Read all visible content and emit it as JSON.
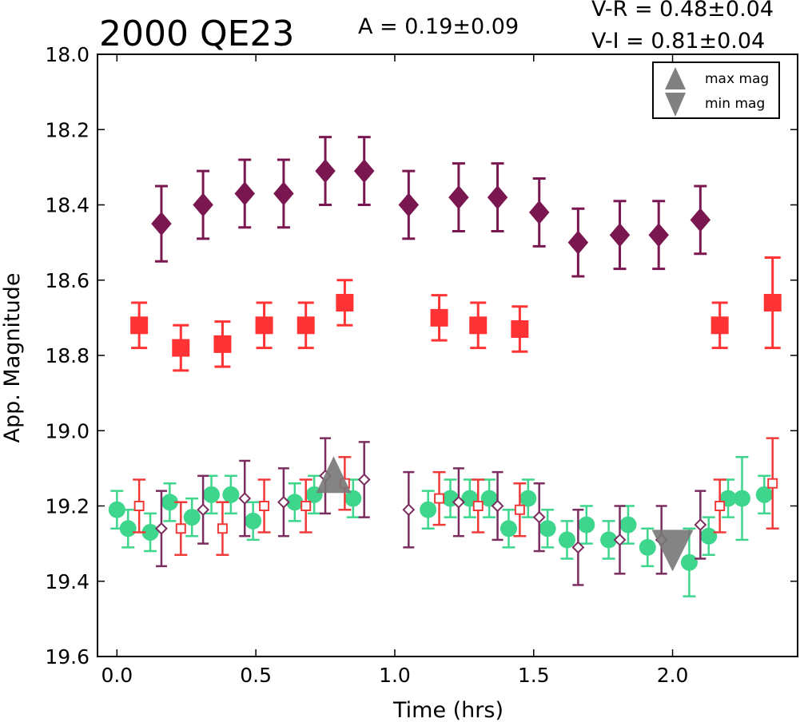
{
  "chart_data": {
    "type": "scatter",
    "title": "2000 QE23",
    "xlabel": "Time (hrs)",
    "ylabel": "App. Magnitude",
    "xlim": [
      -0.07,
      2.45
    ],
    "ylim": [
      19.6,
      18.0
    ],
    "y_inverted": true,
    "xticks": [
      0.0,
      0.5,
      1.0,
      1.5,
      2.0
    ],
    "xtick_labels": [
      "0.0",
      "0.5",
      "1.0",
      "1.5",
      "2.0"
    ],
    "yticks": [
      18.0,
      18.2,
      18.4,
      18.6,
      18.8,
      19.0,
      19.2,
      19.4,
      19.6
    ],
    "ytick_labels": [
      "18.0",
      "18.2",
      "18.4",
      "18.6",
      "18.8",
      "19.0",
      "19.2",
      "19.4",
      "19.6"
    ],
    "grid": false,
    "annotations": {
      "amplitude": "A  = 0.19±0.09",
      "v_r": "V-R = 0.48±0.04",
      "v_i": "V-I  = 0.81±0.04"
    },
    "legend": {
      "placement": "top-right",
      "entries": [
        {
          "label": "max mag",
          "marker": "triangle-up",
          "color": "#808080"
        },
        {
          "label": "min mag",
          "marker": "triangle-down",
          "color": "#808080"
        }
      ]
    },
    "markers": [
      {
        "kind": "max",
        "x": 0.78,
        "y": 19.14
      },
      {
        "kind": "min",
        "x": 2.0,
        "y": 19.31
      }
    ],
    "series": [
      {
        "marker": "diamond-filled",
        "color": "#7a1750",
        "points": [
          {
            "x": 0.16,
            "y": 18.45,
            "err": 0.1
          },
          {
            "x": 0.31,
            "y": 18.4,
            "err": 0.09
          },
          {
            "x": 0.46,
            "y": 18.37,
            "err": 0.09
          },
          {
            "x": 0.6,
            "y": 18.37,
            "err": 0.09
          },
          {
            "x": 0.75,
            "y": 18.31,
            "err": 0.09
          },
          {
            "x": 0.89,
            "y": 18.31,
            "err": 0.09
          },
          {
            "x": 1.05,
            "y": 18.4,
            "err": 0.09
          },
          {
            "x": 1.23,
            "y": 18.38,
            "err": 0.09
          },
          {
            "x": 1.37,
            "y": 18.38,
            "err": 0.09
          },
          {
            "x": 1.52,
            "y": 18.42,
            "err": 0.09
          },
          {
            "x": 1.66,
            "y": 18.5,
            "err": 0.09
          },
          {
            "x": 1.81,
            "y": 18.48,
            "err": 0.09
          },
          {
            "x": 1.95,
            "y": 18.48,
            "err": 0.09
          },
          {
            "x": 2.1,
            "y": 18.44,
            "err": 0.09
          }
        ]
      },
      {
        "marker": "square-filled",
        "color": "#ff3333",
        "points": [
          {
            "x": 0.08,
            "y": 18.72,
            "err": 0.06
          },
          {
            "x": 0.23,
            "y": 18.78,
            "err": 0.06
          },
          {
            "x": 0.38,
            "y": 18.77,
            "err": 0.06
          },
          {
            "x": 0.53,
            "y": 18.72,
            "err": 0.06
          },
          {
            "x": 0.68,
            "y": 18.72,
            "err": 0.06
          },
          {
            "x": 0.82,
            "y": 18.66,
            "err": 0.06
          },
          {
            "x": 1.16,
            "y": 18.7,
            "err": 0.06
          },
          {
            "x": 1.3,
            "y": 18.72,
            "err": 0.06
          },
          {
            "x": 1.45,
            "y": 18.73,
            "err": 0.06
          },
          {
            "x": 2.17,
            "y": 18.72,
            "err": 0.06
          },
          {
            "x": 2.36,
            "y": 18.66,
            "err": 0.12
          }
        ]
      },
      {
        "marker": "circle-filled",
        "color": "#3dd68c",
        "points": [
          {
            "x": 0.0,
            "y": 19.21,
            "err": 0.05
          },
          {
            "x": 0.04,
            "y": 19.26,
            "err": 0.05
          },
          {
            "x": 0.12,
            "y": 19.27,
            "err": 0.05
          },
          {
            "x": 0.19,
            "y": 19.19,
            "err": 0.05
          },
          {
            "x": 0.27,
            "y": 19.23,
            "err": 0.05
          },
          {
            "x": 0.34,
            "y": 19.17,
            "err": 0.05
          },
          {
            "x": 0.41,
            "y": 19.17,
            "err": 0.05
          },
          {
            "x": 0.49,
            "y": 19.24,
            "err": 0.05
          },
          {
            "x": 0.64,
            "y": 19.19,
            "err": 0.05
          },
          {
            "x": 0.71,
            "y": 19.17,
            "err": 0.05
          },
          {
            "x": 0.85,
            "y": 19.18,
            "err": 0.05
          },
          {
            "x": 1.12,
            "y": 19.21,
            "err": 0.05
          },
          {
            "x": 1.2,
            "y": 19.18,
            "err": 0.05
          },
          {
            "x": 1.27,
            "y": 19.18,
            "err": 0.05
          },
          {
            "x": 1.34,
            "y": 19.18,
            "err": 0.05
          },
          {
            "x": 1.41,
            "y": 19.26,
            "err": 0.05
          },
          {
            "x": 1.48,
            "y": 19.18,
            "err": 0.05
          },
          {
            "x": 1.55,
            "y": 19.26,
            "err": 0.05
          },
          {
            "x": 1.62,
            "y": 19.29,
            "err": 0.05
          },
          {
            "x": 1.69,
            "y": 19.25,
            "err": 0.05
          },
          {
            "x": 1.77,
            "y": 19.29,
            "err": 0.05
          },
          {
            "x": 1.84,
            "y": 19.25,
            "err": 0.05
          },
          {
            "x": 1.91,
            "y": 19.31,
            "err": 0.05
          },
          {
            "x": 2.06,
            "y": 19.35,
            "err": 0.09
          },
          {
            "x": 2.13,
            "y": 19.28,
            "err": 0.05
          },
          {
            "x": 2.2,
            "y": 19.18,
            "err": 0.05
          },
          {
            "x": 2.25,
            "y": 19.18,
            "err": 0.11
          },
          {
            "x": 2.33,
            "y": 19.17,
            "err": 0.05
          }
        ]
      },
      {
        "marker": "square-open",
        "color": "#f03a3a",
        "points": [
          {
            "x": 0.08,
            "y": 19.2,
            "err": 0.07
          },
          {
            "x": 0.23,
            "y": 19.26,
            "err": 0.07
          },
          {
            "x": 0.38,
            "y": 19.26,
            "err": 0.07
          },
          {
            "x": 0.53,
            "y": 19.2,
            "err": 0.07
          },
          {
            "x": 0.68,
            "y": 19.2,
            "err": 0.07
          },
          {
            "x": 0.82,
            "y": 19.14,
            "err": 0.07
          },
          {
            "x": 1.16,
            "y": 19.18,
            "err": 0.07
          },
          {
            "x": 1.3,
            "y": 19.2,
            "err": 0.07
          },
          {
            "x": 1.45,
            "y": 19.21,
            "err": 0.07
          },
          {
            "x": 2.17,
            "y": 19.2,
            "err": 0.07
          },
          {
            "x": 2.36,
            "y": 19.14,
            "err": 0.12
          }
        ]
      },
      {
        "marker": "diamond-open",
        "color": "#7a2d5e",
        "points": [
          {
            "x": 0.16,
            "y": 19.26,
            "err": 0.1
          },
          {
            "x": 0.31,
            "y": 19.21,
            "err": 0.09
          },
          {
            "x": 0.46,
            "y": 19.18,
            "err": 0.1
          },
          {
            "x": 0.6,
            "y": 19.19,
            "err": 0.09
          },
          {
            "x": 0.75,
            "y": 19.12,
            "err": 0.1
          },
          {
            "x": 0.89,
            "y": 19.13,
            "err": 0.1
          },
          {
            "x": 1.05,
            "y": 19.21,
            "err": 0.1
          },
          {
            "x": 1.23,
            "y": 19.19,
            "err": 0.09
          },
          {
            "x": 1.37,
            "y": 19.2,
            "err": 0.09
          },
          {
            "x": 1.52,
            "y": 19.23,
            "err": 0.09
          },
          {
            "x": 1.66,
            "y": 19.31,
            "err": 0.1
          },
          {
            "x": 1.81,
            "y": 19.29,
            "err": 0.09
          },
          {
            "x": 1.96,
            "y": 19.29,
            "err": 0.09
          },
          {
            "x": 2.1,
            "y": 19.25,
            "err": 0.09
          }
        ]
      }
    ]
  }
}
